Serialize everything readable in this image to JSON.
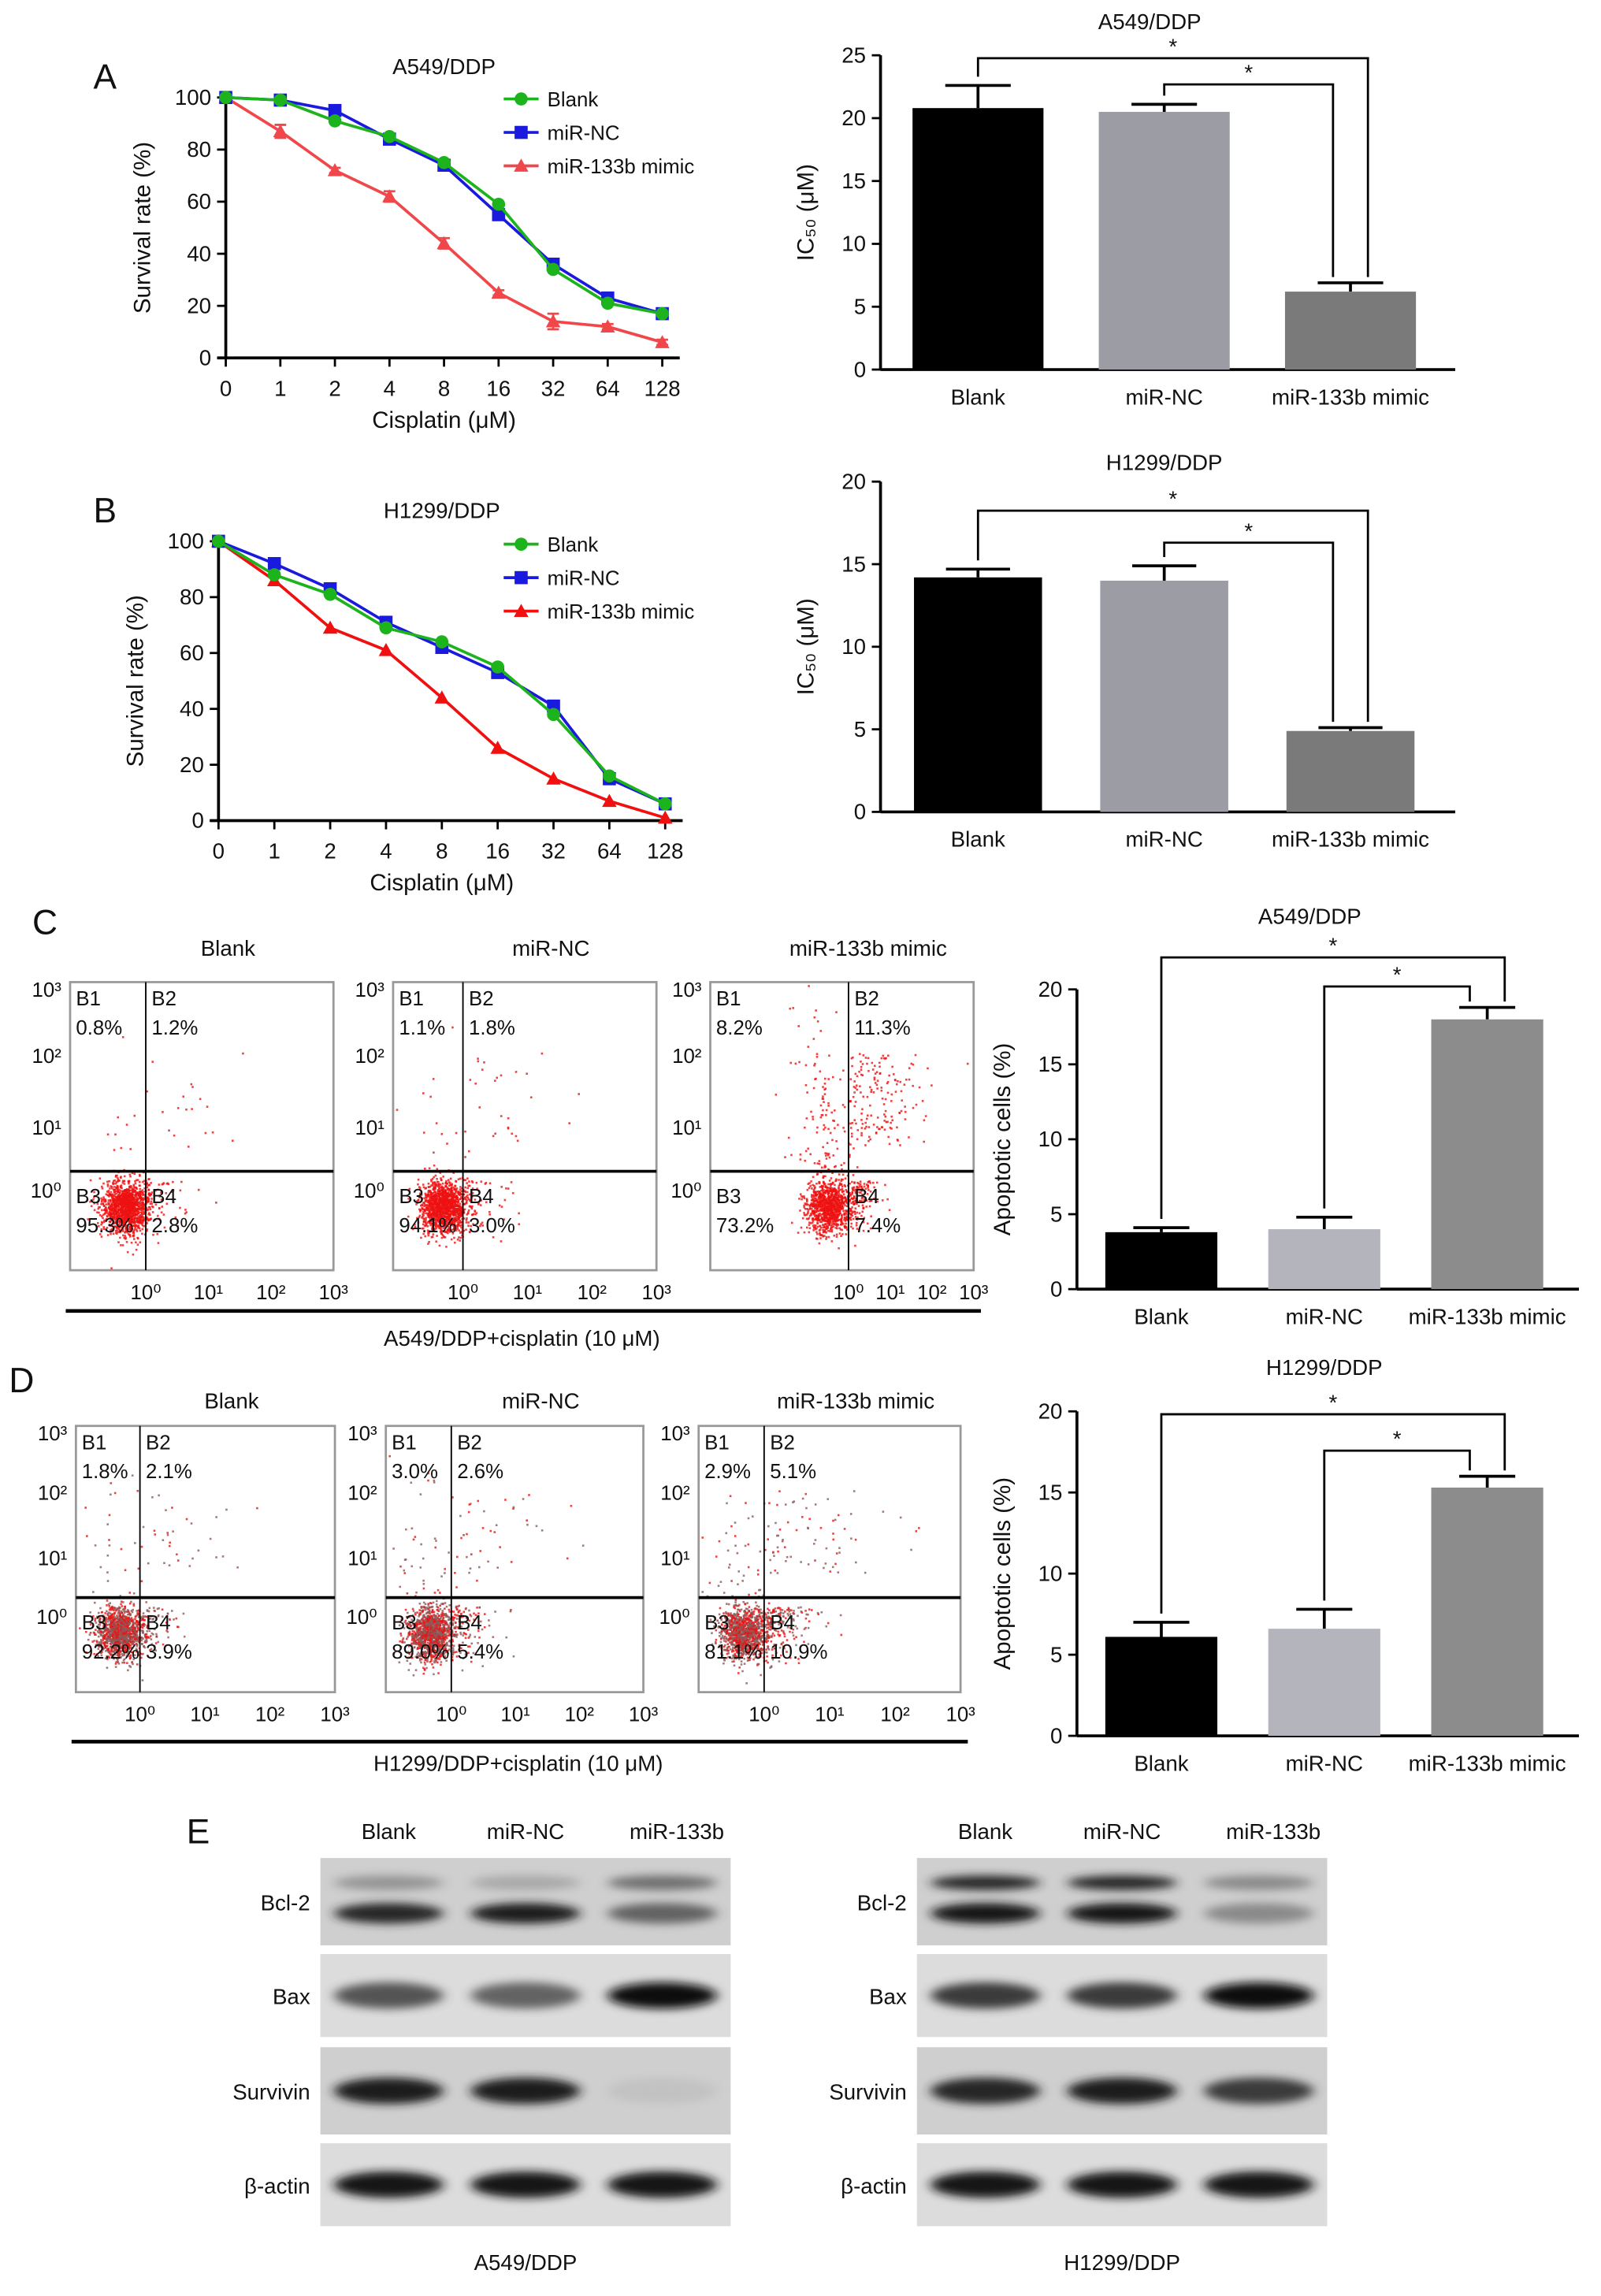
{
  "panel_letters": [
    "A",
    "B",
    "C",
    "D",
    "E"
  ],
  "chart_data": [
    {
      "id": "A-line",
      "type": "line",
      "title": "A549/DDP",
      "xlabel": "Cisplatin (μM)",
      "ylabel": "Survival rate (%)",
      "categories": [
        "0",
        "1",
        "2",
        "4",
        "8",
        "16",
        "32",
        "64",
        "128"
      ],
      "yticks": [
        "0",
        "20",
        "40",
        "60",
        "80",
        "100"
      ],
      "ylim": [
        0,
        100
      ],
      "legend_position": "top-right",
      "series": [
        {
          "name": "Blank",
          "color": "#1db31d",
          "marker": "circle",
          "values": [
            100,
            99,
            91,
            85,
            75,
            59,
            34,
            21,
            17
          ]
        },
        {
          "name": "miR-NC",
          "color": "#1a1adf",
          "marker": "square",
          "values": [
            100,
            99,
            95,
            84,
            74,
            55,
            36,
            23,
            17
          ]
        },
        {
          "name": "miR-133b mimic",
          "color": "#f0484a",
          "marker": "triangle",
          "values": [
            100,
            87,
            72,
            62,
            44,
            25,
            14,
            12,
            6
          ],
          "errors": [
            0,
            2.5,
            1,
            2,
            2,
            1,
            3,
            1,
            1
          ]
        }
      ]
    },
    {
      "id": "B-line",
      "type": "line",
      "title": "H1299/DDP",
      "xlabel": "Cisplatin (μM)",
      "ylabel": "Survival rate (%)",
      "categories": [
        "0",
        "1",
        "2",
        "4",
        "8",
        "16",
        "32",
        "64",
        "128"
      ],
      "yticks": [
        "0",
        "20",
        "40",
        "60",
        "80",
        "100"
      ],
      "ylim": [
        0,
        100
      ],
      "legend_position": "top-right",
      "series": [
        {
          "name": "Blank",
          "color": "#1db31d",
          "marker": "circle",
          "values": [
            100,
            88,
            81,
            69,
            64,
            55,
            38,
            16,
            6
          ]
        },
        {
          "name": "miR-NC",
          "color": "#1a1adf",
          "marker": "square",
          "values": [
            100,
            92,
            83,
            71,
            62,
            53,
            41,
            15,
            6
          ]
        },
        {
          "name": "miR-133b mimic",
          "color": "#f01010",
          "marker": "triangle",
          "values": [
            100,
            86,
            69,
            61,
            44,
            26,
            15,
            7,
            1
          ]
        }
      ]
    },
    {
      "id": "A-bar",
      "type": "bar",
      "title": "A549/DDP",
      "ylabel": "IC₅₀ (μM)",
      "categories": [
        "Blank",
        "miR-NC",
        "miR-133b mimic"
      ],
      "values": [
        20.8,
        20.5,
        6.2
      ],
      "errors": [
        1.8,
        0.6,
        0.7
      ],
      "colors": [
        "#000000",
        "#9c9ca4",
        "#7a7a7a"
      ],
      "yticks": [
        "0",
        "5",
        "10",
        "15",
        "20",
        "25"
      ],
      "ylim": [
        0,
        25
      ],
      "significance": [
        {
          "from": 0,
          "to": 2,
          "label": "*"
        },
        {
          "from": 1,
          "to": 2,
          "label": "*"
        }
      ]
    },
    {
      "id": "B-bar",
      "type": "bar",
      "title": "H1299/DDP",
      "ylabel": "IC₅₀ (μM)",
      "categories": [
        "Blank",
        "miR-NC",
        "miR-133b mimic"
      ],
      "values": [
        14.2,
        14.0,
        4.9
      ],
      "errors": [
        0.5,
        0.9,
        0.2
      ],
      "colors": [
        "#000000",
        "#9c9ca4",
        "#7a7a7a"
      ],
      "yticks": [
        "0",
        "5",
        "10",
        "15",
        "20"
      ],
      "ylim": [
        0,
        20
      ],
      "significance": [
        {
          "from": 0,
          "to": 2,
          "label": "*"
        },
        {
          "from": 1,
          "to": 2,
          "label": "*"
        }
      ]
    },
    {
      "id": "C-bar",
      "type": "bar",
      "title": "A549/DDP",
      "ylabel": "Apoptotic cells (%)",
      "categories": [
        "Blank",
        "miR-NC",
        "miR-133b mimic"
      ],
      "values": [
        3.8,
        4.0,
        18.0
      ],
      "errors": [
        0.3,
        0.8,
        0.8
      ],
      "colors": [
        "#000000",
        "#b4b4bc",
        "#8c8c8c"
      ],
      "yticks": [
        "0",
        "5",
        "10",
        "15",
        "20"
      ],
      "ylim": [
        0,
        20
      ],
      "significance": [
        {
          "from": 0,
          "to": 2,
          "label": "*"
        },
        {
          "from": 1,
          "to": 2,
          "label": "*"
        }
      ]
    },
    {
      "id": "D-bar",
      "type": "bar",
      "title": "H1299/DDP",
      "ylabel": "Apoptotic cells (%)",
      "categories": [
        "Blank",
        "miR-NC",
        "miR-133b mimic"
      ],
      "values": [
        6.1,
        6.6,
        15.3
      ],
      "errors": [
        0.9,
        1.2,
        0.7
      ],
      "colors": [
        "#000000",
        "#b4b4bc",
        "#8c8c8c"
      ],
      "yticks": [
        "0",
        "5",
        "10",
        "15",
        "20"
      ],
      "ylim": [
        0,
        20
      ],
      "significance": [
        {
          "from": 0,
          "to": 2,
          "label": "*"
        },
        {
          "from": 1,
          "to": 2,
          "label": "*"
        }
      ]
    },
    {
      "id": "C-flow",
      "type": "scatter",
      "subtitle": "A549/DDP+cisplatin (10 μM)",
      "axis_ticks": [
        "10⁰",
        "10¹",
        "10²",
        "10³"
      ],
      "dot_color": "#ee1111",
      "mixed_dots": false,
      "plots": [
        {
          "title": "Blank",
          "quadrants": [
            {
              "name": "B1",
              "pct": "0.8%"
            },
            {
              "name": "B2",
              "pct": "1.2%"
            },
            {
              "name": "B3",
              "pct": "95.3%"
            },
            {
              "name": "B4",
              "pct": "2.8%"
            }
          ],
          "fractions": [
            0.8,
            1.2,
            95.3,
            2.8
          ]
        },
        {
          "title": "miR-NC",
          "quadrants": [
            {
              "name": "B1",
              "pct": "1.1%"
            },
            {
              "name": "B2",
              "pct": "1.8%"
            },
            {
              "name": "B3",
              "pct": "94.1%"
            },
            {
              "name": "B4",
              "pct": "3.0%"
            }
          ],
          "fractions": [
            1.1,
            1.8,
            94.1,
            3.0
          ]
        },
        {
          "title": "miR-133b mimic",
          "quadrants": [
            {
              "name": "B1",
              "pct": "8.2%"
            },
            {
              "name": "B2",
              "pct": "11.3%"
            },
            {
              "name": "B3",
              "pct": "73.2%"
            },
            {
              "name": "B4",
              "pct": "7.4%"
            }
          ],
          "fractions": [
            8.2,
            11.3,
            73.2,
            7.4
          ]
        }
      ]
    },
    {
      "id": "D-flow",
      "type": "scatter",
      "subtitle": "H1299/DDP+cisplatin (10 μM)",
      "axis_ticks": [
        "10⁰",
        "10¹",
        "10²",
        "10³"
      ],
      "dot_color": "#ee1111",
      "mixed_dots": true,
      "plots": [
        {
          "title": "Blank",
          "quadrants": [
            {
              "name": "B1",
              "pct": "1.8%"
            },
            {
              "name": "B2",
              "pct": "2.1%"
            },
            {
              "name": "B3",
              "pct": "92.2%"
            },
            {
              "name": "B4",
              "pct": "3.9%"
            }
          ],
          "fractions": [
            1.8,
            2.1,
            92.2,
            3.9
          ]
        },
        {
          "title": "miR-NC",
          "quadrants": [
            {
              "name": "B1",
              "pct": "3.0%"
            },
            {
              "name": "B2",
              "pct": "2.6%"
            },
            {
              "name": "B3",
              "pct": "89.0%"
            },
            {
              "name": "B4",
              "pct": "5.4%"
            }
          ],
          "fractions": [
            3.0,
            2.6,
            89.0,
            5.4
          ]
        },
        {
          "title": "miR-133b mimic",
          "quadrants": [
            {
              "name": "B1",
              "pct": "2.9%"
            },
            {
              "name": "B2",
              "pct": "5.1%"
            },
            {
              "name": "B3",
              "pct": "81.1%"
            },
            {
              "name": "B4",
              "pct": "10.9%"
            }
          ],
          "fractions": [
            2.9,
            5.1,
            81.1,
            10.9
          ]
        }
      ]
    }
  ],
  "western_blots": [
    {
      "cell_line": "A549/DDP",
      "lanes": [
        "Blank",
        "miR-NC",
        "miR-133b"
      ],
      "rows": [
        {
          "protein": "Bcl-2",
          "bands": [
            [
              0.4,
              0.3,
              0.55
            ],
            [
              0.85,
              0.9,
              0.6
            ]
          ]
        },
        {
          "protein": "Bax",
          "bands": [
            [
              0.65,
              0.6,
              0.98
            ]
          ]
        },
        {
          "protein": "Survivin",
          "bands": [
            [
              0.9,
              0.9,
              0.12
            ]
          ]
        },
        {
          "protein": "β-actin",
          "bands": [
            [
              0.95,
              0.95,
              0.95
            ]
          ]
        }
      ]
    },
    {
      "cell_line": "H1299/DDP",
      "lanes": [
        "Blank",
        "miR-NC",
        "miR-133b"
      ],
      "rows": [
        {
          "protein": "Bcl-2",
          "bands": [
            [
              0.85,
              0.85,
              0.45
            ],
            [
              0.95,
              0.95,
              0.45
            ]
          ]
        },
        {
          "protein": "Bax",
          "bands": [
            [
              0.75,
              0.75,
              0.98
            ]
          ]
        },
        {
          "protein": "Survivin",
          "bands": [
            [
              0.85,
              0.9,
              0.75
            ]
          ]
        },
        {
          "protein": "β-actin",
          "bands": [
            [
              0.95,
              0.95,
              0.95
            ]
          ]
        }
      ]
    }
  ]
}
